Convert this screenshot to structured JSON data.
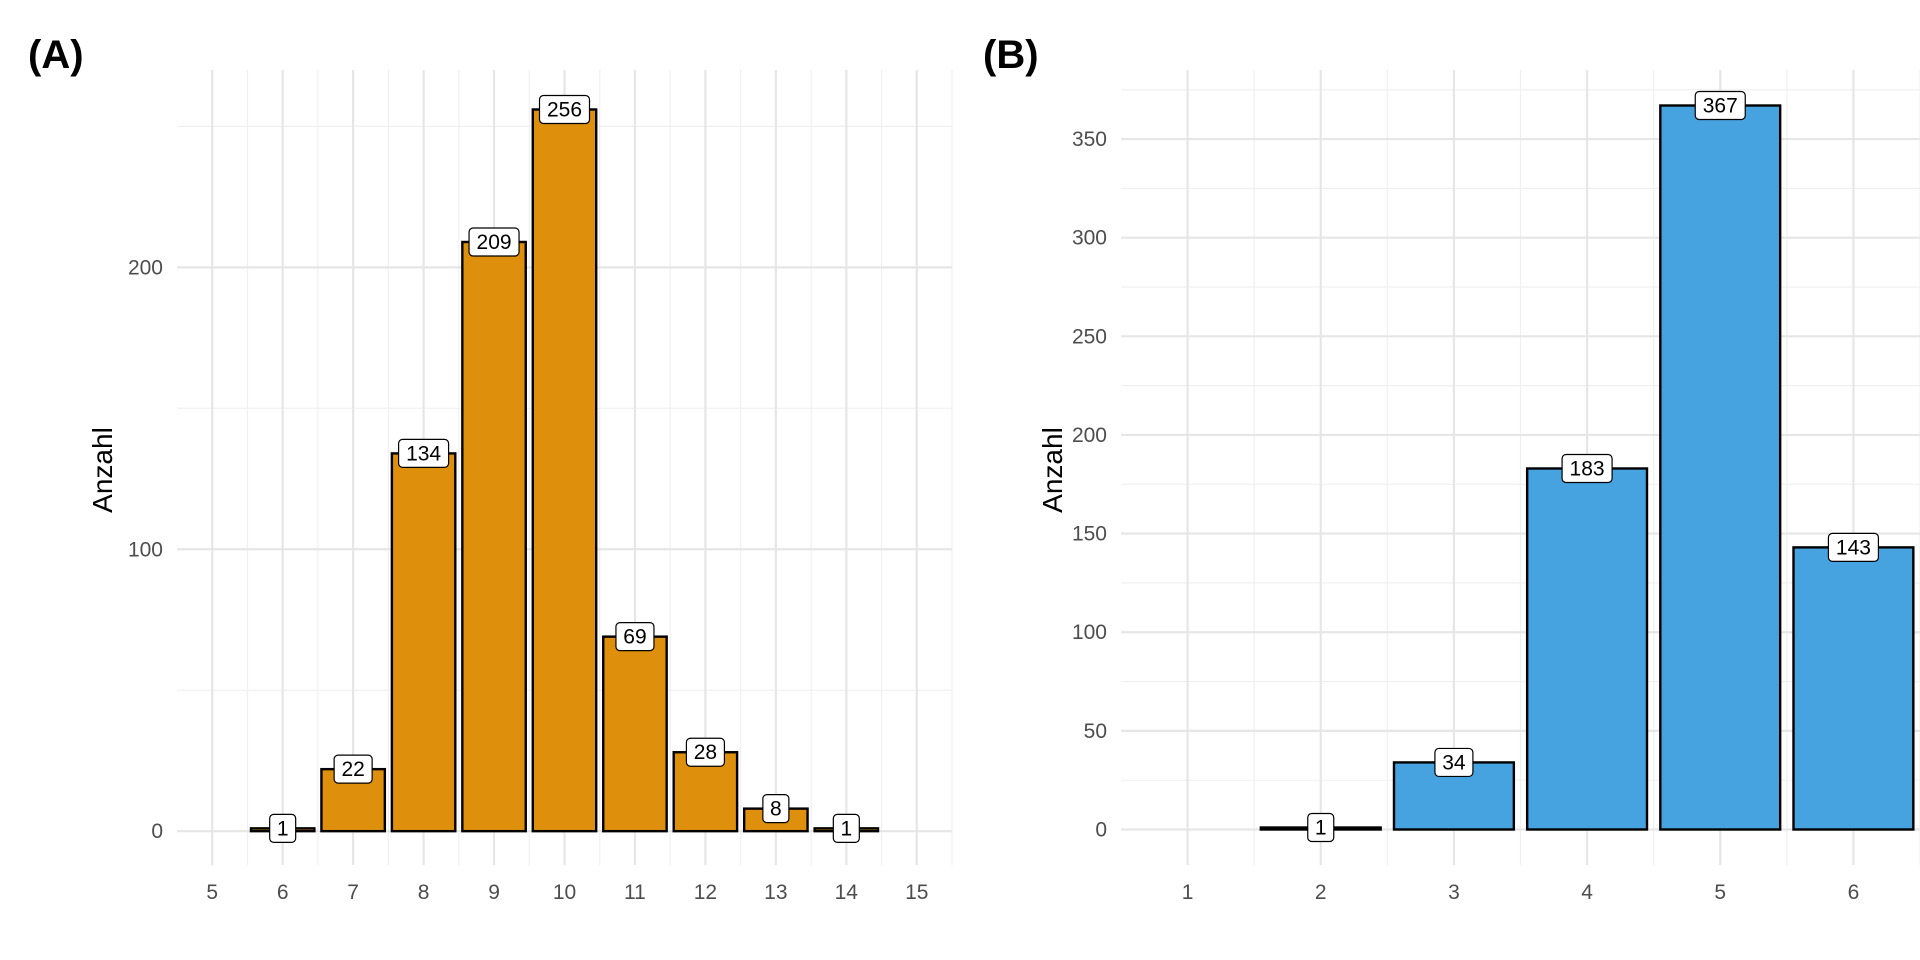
{
  "chart_data": [
    {
      "type": "bar",
      "panel_label": "(A)",
      "xlabel": "",
      "ylabel": "Anzahl",
      "x_ticks": [
        "5",
        "6",
        "7",
        "8",
        "9",
        "10",
        "11",
        "12",
        "13",
        "14",
        "15"
      ],
      "y_ticks": [
        "0",
        "100",
        "200"
      ],
      "xlim": [
        4.5,
        15.5
      ],
      "ylim": [
        -12,
        270
      ],
      "categories": [
        6,
        7,
        8,
        9,
        10,
        11,
        12,
        13,
        14
      ],
      "values": [
        1,
        22,
        134,
        209,
        256,
        69,
        28,
        8,
        1
      ],
      "bar_color": "#DE8F0C",
      "grid": true
    },
    {
      "type": "bar",
      "panel_label": "(B)",
      "xlabel": "",
      "ylabel": "Anzahl",
      "x_ticks": [
        "1",
        "2",
        "3",
        "4",
        "5",
        "6"
      ],
      "y_ticks": [
        "0",
        "50",
        "100",
        "150",
        "200",
        "250",
        "300",
        "350"
      ],
      "xlim": [
        0.5,
        6.5
      ],
      "ylim": [
        -18,
        385
      ],
      "categories": [
        2,
        3,
        4,
        5,
        6
      ],
      "values": [
        1,
        34,
        183,
        367,
        143
      ],
      "bar_color": "#46A3E0",
      "grid": true
    }
  ]
}
